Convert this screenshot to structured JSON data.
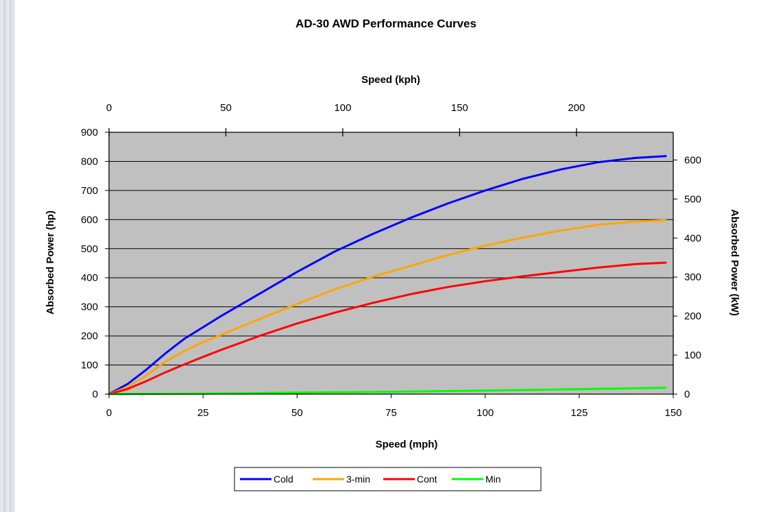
{
  "chart_data": {
    "type": "line",
    "title": "AD-30 AWD Performance Curves",
    "xlabel": "Speed (mph)",
    "x2label": "Speed (kph)",
    "ylabel": "Absorbed Power (hp)",
    "y2label": "Absorbed Power (kW)",
    "xlim": [
      0,
      150
    ],
    "x2lim": [
      0,
      241.4
    ],
    "ylim": [
      0,
      900
    ],
    "y2lim": [
      0,
      671
    ],
    "xticks": [
      "0",
      "25",
      "50",
      "75",
      "100",
      "125",
      "150"
    ],
    "x2ticks": [
      "0",
      "50",
      "100",
      "150",
      "200"
    ],
    "yticks": [
      "0",
      "100",
      "200",
      "300",
      "400",
      "500",
      "600",
      "700",
      "800",
      "900"
    ],
    "y2ticks": [
      "0",
      "100",
      "200",
      "300",
      "400",
      "500",
      "600"
    ],
    "grid": "horizontal",
    "legend_position": "bottom",
    "plot_background": "#c0c0c0",
    "series": [
      {
        "name": "Cold",
        "color": "#0000ff",
        "x": [
          0,
          5,
          10,
          15,
          20,
          25,
          30,
          40,
          50,
          60,
          70,
          80,
          90,
          100,
          110,
          120,
          130,
          140,
          148
        ],
        "y": [
          0,
          35,
          85,
          140,
          190,
          230,
          270,
          345,
          420,
          490,
          550,
          605,
          655,
          700,
          740,
          772,
          797,
          812,
          818
        ]
      },
      {
        "name": "3-min",
        "color": "#ffa500",
        "x": [
          0,
          5,
          10,
          15,
          20,
          25,
          30,
          40,
          50,
          60,
          70,
          80,
          90,
          100,
          110,
          120,
          130,
          140,
          148
        ],
        "y": [
          0,
          25,
          65,
          112,
          148,
          178,
          205,
          258,
          310,
          360,
          403,
          440,
          478,
          510,
          538,
          562,
          582,
          593,
          598
        ]
      },
      {
        "name": "Cont",
        "color": "#ff0000",
        "x": [
          0,
          5,
          10,
          15,
          20,
          25,
          30,
          40,
          50,
          60,
          70,
          80,
          90,
          100,
          110,
          120,
          130,
          140,
          148
        ],
        "y": [
          0,
          18,
          45,
          75,
          102,
          128,
          153,
          200,
          243,
          280,
          313,
          343,
          368,
          388,
          405,
          420,
          435,
          447,
          452
        ]
      },
      {
        "name": "Min",
        "color": "#00ff00",
        "x": [
          0,
          25,
          50,
          75,
          100,
          125,
          148
        ],
        "y": [
          0,
          2,
          5,
          8,
          12,
          17,
          22
        ]
      }
    ]
  }
}
